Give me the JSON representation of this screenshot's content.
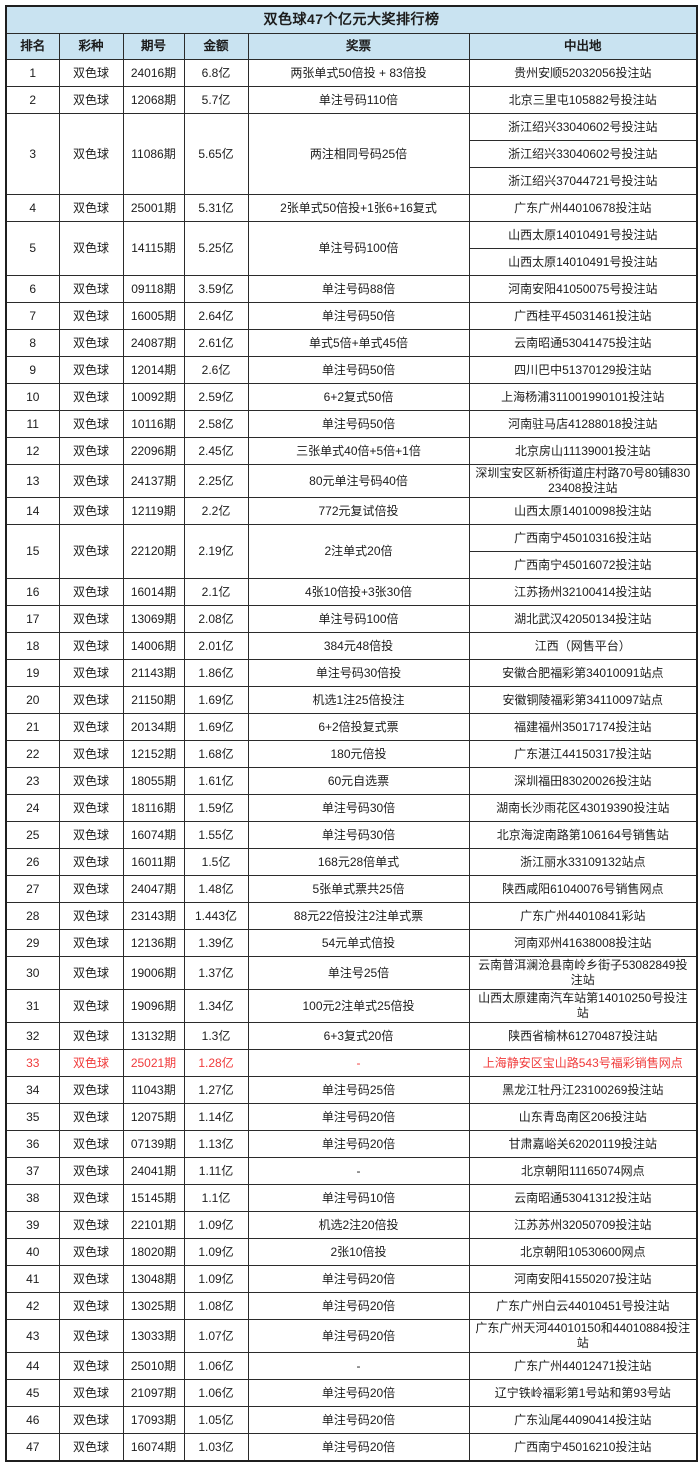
{
  "colors": {
    "header_bg": "#c9e3f1",
    "highlight_red": "#f03b3b",
    "border": "#2b2b2b",
    "text": "#1c1c1c"
  },
  "table": {
    "title": "双色球47个亿元大奖排行榜",
    "columns": [
      "排名",
      "彩种",
      "期号",
      "金额",
      "奖票",
      "中出地"
    ],
    "rows": [
      {
        "rank": "1",
        "type": "双色球",
        "period": "24016期",
        "amount": "6.8亿",
        "ticket": "两张单式50倍投 + 83倍投",
        "locations": [
          "贵州安顺52032056投注站"
        ]
      },
      {
        "rank": "2",
        "type": "双色球",
        "period": "12068期",
        "amount": "5.7亿",
        "ticket": "单注号码110倍",
        "locations": [
          "北京三里屯105882号投注站"
        ]
      },
      {
        "rank": "3",
        "type": "双色球",
        "period": "11086期",
        "amount": "5.65亿",
        "ticket": "两注相同号码25倍",
        "locations": [
          "浙江绍兴33040602号投注站",
          "浙江绍兴33040602号投注站",
          "浙江绍兴37044721号投注站"
        ]
      },
      {
        "rank": "4",
        "type": "双色球",
        "period": "25001期",
        "amount": "5.31亿",
        "ticket": "2张单式50倍投+1张6+16复式",
        "locations": [
          "广东广州44010678投注站"
        ]
      },
      {
        "rank": "5",
        "type": "双色球",
        "period": "14115期",
        "amount": "5.25亿",
        "ticket": "单注号码100倍",
        "locations": [
          "山西太原14010491号投注站",
          "山西太原14010491号投注站"
        ]
      },
      {
        "rank": "6",
        "type": "双色球",
        "period": "09118期",
        "amount": "3.59亿",
        "ticket": "单注号码88倍",
        "locations": [
          "河南安阳41050075号投注站"
        ]
      },
      {
        "rank": "7",
        "type": "双色球",
        "period": "16005期",
        "amount": "2.64亿",
        "ticket": "单注号码50倍",
        "locations": [
          "广西桂平45031461投注站"
        ]
      },
      {
        "rank": "8",
        "type": "双色球",
        "period": "24087期",
        "amount": "2.61亿",
        "ticket": "单式5倍+单式45倍",
        "locations": [
          "云南昭通53041475投注站"
        ]
      },
      {
        "rank": "9",
        "type": "双色球",
        "period": "12014期",
        "amount": "2.6亿",
        "ticket": "单注号码50倍",
        "locations": [
          "四川巴中51370129投注站"
        ]
      },
      {
        "rank": "10",
        "type": "双色球",
        "period": "10092期",
        "amount": "2.59亿",
        "ticket": "6+2复式50倍",
        "locations": [
          "上海杨浦311001990101投注站"
        ]
      },
      {
        "rank": "11",
        "type": "双色球",
        "period": "10116期",
        "amount": "2.58亿",
        "ticket": "单注号码50倍",
        "locations": [
          "河南驻马店41288018投注站"
        ]
      },
      {
        "rank": "12",
        "type": "双色球",
        "period": "22096期",
        "amount": "2.45亿",
        "ticket": "三张单式40倍+5倍+1倍",
        "locations": [
          "北京房山11139001投注站"
        ]
      },
      {
        "rank": "13",
        "type": "双色球",
        "period": "24137期",
        "amount": "2.25亿",
        "ticket": "80元单注号码40倍",
        "locations": [
          "深圳宝安区新桥街道庄村路70号80铺83023408投注站"
        ]
      },
      {
        "rank": "14",
        "type": "双色球",
        "period": "12119期",
        "amount": "2.2亿",
        "ticket": "772元复试倍投",
        "locations": [
          "山西太原14010098投注站"
        ]
      },
      {
        "rank": "15",
        "type": "双色球",
        "period": "22120期",
        "amount": "2.19亿",
        "ticket": "2注单式20倍",
        "locations": [
          "广西南宁45010316投注站",
          "广西南宁45016072投注站"
        ]
      },
      {
        "rank": "16",
        "type": "双色球",
        "period": "16014期",
        "amount": "2.1亿",
        "ticket": "4张10倍投+3张30倍",
        "locations": [
          "江苏扬州32100414投注站"
        ]
      },
      {
        "rank": "17",
        "type": "双色球",
        "period": "13069期",
        "amount": "2.08亿",
        "ticket": "单注号码100倍",
        "locations": [
          "湖北武汉42050134投注站"
        ]
      },
      {
        "rank": "18",
        "type": "双色球",
        "period": "14006期",
        "amount": "2.01亿",
        "ticket": "384元48倍投",
        "locations": [
          "江西（网售平台）"
        ]
      },
      {
        "rank": "19",
        "type": "双色球",
        "period": "21143期",
        "amount": "1.86亿",
        "ticket": "单注号码30倍投",
        "locations": [
          "安徽合肥福彩第34010091站点"
        ]
      },
      {
        "rank": "20",
        "type": "双色球",
        "period": "21150期",
        "amount": "1.69亿",
        "ticket": "机选1注25倍投注",
        "locations": [
          "安徽铜陵福彩第34110097站点"
        ]
      },
      {
        "rank": "21",
        "type": "双色球",
        "period": "20134期",
        "amount": "1.69亿",
        "ticket": "6+2倍投复式票",
        "locations": [
          "福建福州35017174投注站"
        ]
      },
      {
        "rank": "22",
        "type": "双色球",
        "period": "12152期",
        "amount": "1.68亿",
        "ticket": "180元倍投",
        "locations": [
          "广东湛江44150317投注站"
        ]
      },
      {
        "rank": "23",
        "type": "双色球",
        "period": "18055期",
        "amount": "1.61亿",
        "ticket": "60元自选票",
        "locations": [
          "深圳福田83020026投注站"
        ]
      },
      {
        "rank": "24",
        "type": "双色球",
        "period": "18116期",
        "amount": "1.59亿",
        "ticket": "单注号码30倍",
        "locations": [
          "湖南长沙雨花区43019390投注站"
        ]
      },
      {
        "rank": "25",
        "type": "双色球",
        "period": "16074期",
        "amount": "1.55亿",
        "ticket": "单注号码30倍",
        "locations": [
          "北京海淀南路第106164号销售站"
        ]
      },
      {
        "rank": "26",
        "type": "双色球",
        "period": "16011期",
        "amount": "1.5亿",
        "ticket": "168元28倍单式",
        "locations": [
          "浙江丽水33109132站点"
        ]
      },
      {
        "rank": "27",
        "type": "双色球",
        "period": "24047期",
        "amount": "1.48亿",
        "ticket": "5张单式票共25倍",
        "locations": [
          "陕西咸阳61040076号销售网点"
        ]
      },
      {
        "rank": "28",
        "type": "双色球",
        "period": "23143期",
        "amount": "1.443亿",
        "ticket": "88元22倍投注2注单式票",
        "locations": [
          "广东广州44010841彩站"
        ]
      },
      {
        "rank": "29",
        "type": "双色球",
        "period": "12136期",
        "amount": "1.39亿",
        "ticket": "54元单式倍投",
        "locations": [
          "河南邓州41638008投注站"
        ]
      },
      {
        "rank": "30",
        "type": "双色球",
        "period": "19006期",
        "amount": "1.37亿",
        "ticket": "单注号25倍",
        "locations": [
          "云南普洱澜沧县南岭乡街子53082849投注站"
        ]
      },
      {
        "rank": "31",
        "type": "双色球",
        "period": "19096期",
        "amount": "1.34亿",
        "ticket": "100元2注单式25倍投",
        "locations": [
          "山西太原建南汽车站第14010250号投注站"
        ]
      },
      {
        "rank": "32",
        "type": "双色球",
        "period": "13132期",
        "amount": "1.3亿",
        "ticket": "6+3复式20倍",
        "locations": [
          "陕西省榆林61270487投注站"
        ]
      },
      {
        "rank": "33",
        "type": "双色球",
        "period": "25021期",
        "amount": "1.28亿",
        "ticket": "-",
        "locations": [
          "上海静安区宝山路543号福彩销售网点"
        ],
        "highlight": true
      },
      {
        "rank": "34",
        "type": "双色球",
        "period": "11043期",
        "amount": "1.27亿",
        "ticket": "单注号码25倍",
        "locations": [
          "黑龙江牡丹江23100269投注站"
        ]
      },
      {
        "rank": "35",
        "type": "双色球",
        "period": "12075期",
        "amount": "1.14亿",
        "ticket": "单注号码20倍",
        "locations": [
          "山东青岛南区206投注站"
        ]
      },
      {
        "rank": "36",
        "type": "双色球",
        "period": "07139期",
        "amount": "1.13亿",
        "ticket": "单注号码20倍",
        "locations": [
          "甘肃嘉峪关62020119投注站"
        ]
      },
      {
        "rank": "37",
        "type": "双色球",
        "period": "24041期",
        "amount": "1.11亿",
        "ticket": "-",
        "locations": [
          "北京朝阳11165074网点"
        ]
      },
      {
        "rank": "38",
        "type": "双色球",
        "period": "15145期",
        "amount": "1.1亿",
        "ticket": "单注号码10倍",
        "locations": [
          "云南昭通53041312投注站"
        ]
      },
      {
        "rank": "39",
        "type": "双色球",
        "period": "22101期",
        "amount": "1.09亿",
        "ticket": "机选2注20倍投",
        "locations": [
          "江苏苏州32050709投注站"
        ]
      },
      {
        "rank": "40",
        "type": "双色球",
        "period": "18020期",
        "amount": "1.09亿",
        "ticket": "2张10倍投",
        "locations": [
          "北京朝阳10530600网点"
        ]
      },
      {
        "rank": "41",
        "type": "双色球",
        "period": "13048期",
        "amount": "1.09亿",
        "ticket": "单注号码20倍",
        "locations": [
          "河南安阳41550207投注站"
        ]
      },
      {
        "rank": "42",
        "type": "双色球",
        "period": "13025期",
        "amount": "1.08亿",
        "ticket": "单注号码20倍",
        "locations": [
          "广东广州白云44010451号投注站"
        ]
      },
      {
        "rank": "43",
        "type": "双色球",
        "period": "13033期",
        "amount": "1.07亿",
        "ticket": "单注号码20倍",
        "locations": [
          "广东广州天河44010150和44010884投注站"
        ]
      },
      {
        "rank": "44",
        "type": "双色球",
        "period": "25010期",
        "amount": "1.06亿",
        "ticket": "-",
        "locations": [
          "广东广州44012471投注站"
        ]
      },
      {
        "rank": "45",
        "type": "双色球",
        "period": "21097期",
        "amount": "1.06亿",
        "ticket": "单注号码20倍",
        "locations": [
          "辽宁铁岭福彩第1号站和第93号站"
        ]
      },
      {
        "rank": "46",
        "type": "双色球",
        "period": "17093期",
        "amount": "1.05亿",
        "ticket": "单注号码20倍",
        "locations": [
          "广东汕尾44090414投注站"
        ]
      },
      {
        "rank": "47",
        "type": "双色球",
        "period": "16074期",
        "amount": "1.03亿",
        "ticket": "单注号码20倍",
        "locations": [
          "广西南宁45016210投注站"
        ]
      }
    ]
  }
}
